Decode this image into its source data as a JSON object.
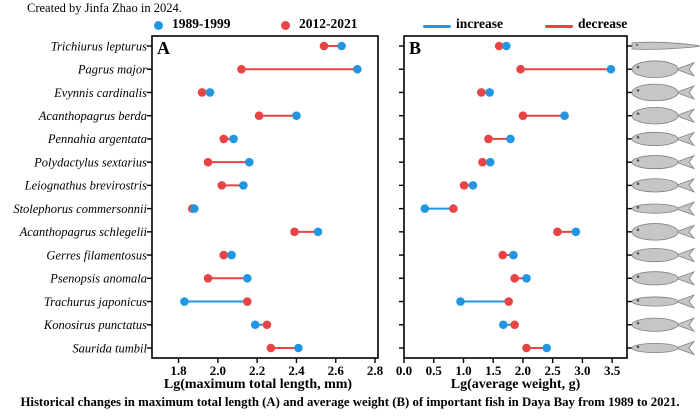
{
  "credit": "Created by Jinfa Zhao in 2024.",
  "caption": "Historical changes in maximum total length (A) and average weight (B) of important fish in Daya Bay from 1989 to 2021.",
  "colors": {
    "blue": "#2196e3",
    "red": "#e94444",
    "fish_fill": "#c6c6c6",
    "fish_stroke": "#808080",
    "fish_eye": "#555555"
  },
  "legend": {
    "dot_items": [
      {
        "label": "1989-1999",
        "color_key": "blue"
      },
      {
        "label": "2012-2021",
        "color_key": "red"
      }
    ],
    "line_items": [
      {
        "label": "increase",
        "color_key": "blue"
      },
      {
        "label": "decrease",
        "color_key": "red"
      }
    ]
  },
  "chart_data": {
    "type": "dumbbell",
    "orientation": "horizontal",
    "legend_note": "connector line color: blue = increase, red = decrease (1989-1999 vs 2012-2021)",
    "categories": [
      "Trichiurus lepturus",
      "Pagrus major",
      "Evynnis cardinalis",
      "Acanthopagrus berda",
      "Pennahia argentata",
      "Polydactylus sextarius",
      "Leiognathus brevirostris",
      "Stolephorus commersonnii",
      "Acanthopagrus schlegelii",
      "Gerres filamentosus",
      "Psenopsis anomala",
      "Trachurus japonicus",
      "Konosirus punctatus",
      "Saurida tumbil"
    ],
    "fish_shapes": [
      "elongated",
      "deep",
      "deep",
      "deep",
      "oval",
      "oval",
      "oval",
      "slender",
      "deep",
      "oval",
      "oval",
      "slender",
      "oval",
      "slender"
    ],
    "panels": [
      {
        "id": "A",
        "label": "A",
        "xlabel": "Lg(maximum total length, mm)",
        "xlim": [
          1.665,
          2.815
        ],
        "xticks": [
          1.8,
          2.0,
          2.2,
          2.4,
          2.6,
          2.8
        ],
        "right_ticks": false,
        "series": [
          {
            "name": "1989-1999",
            "values": [
              2.63,
              2.71,
              1.96,
              2.4,
              2.08,
              2.16,
              2.13,
              1.88,
              2.51,
              2.07,
              2.15,
              1.83,
              2.19,
              2.41
            ]
          },
          {
            "name": "2012-2021",
            "values": [
              2.54,
              2.12,
              1.92,
              2.21,
              2.03,
              1.95,
              2.02,
              1.87,
              2.39,
              2.03,
              1.95,
              2.15,
              2.25,
              2.27
            ]
          }
        ]
      },
      {
        "id": "B",
        "label": "B",
        "xlabel": "Lg(average weight, g)",
        "xlim": [
          0,
          3.75
        ],
        "xticks": [
          0.0,
          0.5,
          1.0,
          1.5,
          2.0,
          2.5,
          3.0,
          3.5
        ],
        "right_ticks": true,
        "series": [
          {
            "name": "1989-1999",
            "values": [
              1.72,
              3.48,
              1.44,
              2.7,
              1.79,
              1.45,
              1.16,
              0.35,
              2.89,
              1.84,
              2.06,
              0.95,
              1.67,
              2.4
            ]
          },
          {
            "name": "2012-2021",
            "values": [
              1.6,
              1.96,
              1.3,
              2.0,
              1.42,
              1.32,
              1.01,
              0.83,
              2.58,
              1.66,
              1.86,
              1.76,
              1.86,
              2.06
            ]
          }
        ]
      }
    ]
  }
}
